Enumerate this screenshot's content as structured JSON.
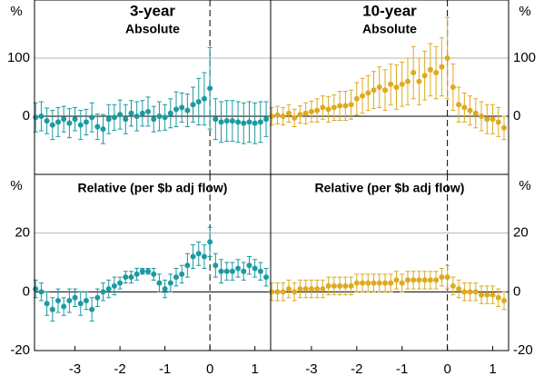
{
  "chart_data": [
    {
      "type": "scatter",
      "title": "3-year",
      "subtitle": "Absolute",
      "unit": "%",
      "x": [
        -3.875,
        -3.75,
        -3.625,
        -3.5,
        -3.375,
        -3.25,
        -3.125,
        -3,
        -2.875,
        -2.75,
        -2.625,
        -2.5,
        -2.375,
        -2.25,
        -2.125,
        -2,
        -1.875,
        -1.75,
        -1.625,
        -1.5,
        -1.375,
        -1.25,
        -1.125,
        -1,
        -0.875,
        -0.75,
        -0.625,
        -0.5,
        -0.375,
        -0.25,
        -0.125,
        0,
        0.125,
        0.25,
        0.375,
        0.5,
        0.625,
        0.75,
        0.875,
        1,
        1.125,
        1.25
      ],
      "series": [
        {
          "color": "#1b9aa0",
          "values": [
            -2,
            0,
            -8,
            -15,
            -10,
            -5,
            -12,
            -5,
            -15,
            -10,
            -2,
            -18,
            -22,
            -5,
            -2,
            3,
            -5,
            5,
            0,
            5,
            8,
            -5,
            0,
            -2,
            5,
            12,
            15,
            10,
            20,
            25,
            30,
            48,
            -5,
            -10,
            -8,
            -8,
            -10,
            -12,
            -10,
            -12,
            -10,
            -5
          ],
          "errors": [
            25,
            25,
            22,
            25,
            25,
            22,
            25,
            20,
            25,
            22,
            25,
            22,
            25,
            25,
            22,
            25,
            25,
            22,
            25,
            22,
            25,
            22,
            25,
            22,
            25,
            30,
            25,
            28,
            30,
            40,
            45,
            70,
            35,
            35,
            35,
            35,
            35,
            35,
            35,
            35,
            35,
            30
          ]
        }
      ],
      "xlim": [
        -3.9,
        1.35
      ],
      "ylim": [
        -100,
        200
      ],
      "yticks": [
        0,
        100
      ],
      "vline": 0,
      "axis_side": "left"
    },
    {
      "type": "scatter",
      "title": "10-year",
      "subtitle": "Absolute",
      "unit": "%",
      "x": [
        -3.875,
        -3.75,
        -3.625,
        -3.5,
        -3.375,
        -3.25,
        -3.125,
        -3,
        -2.875,
        -2.75,
        -2.625,
        -2.5,
        -2.375,
        -2.25,
        -2.125,
        -2,
        -1.875,
        -1.75,
        -1.625,
        -1.5,
        -1.375,
        -1.25,
        -1.125,
        -1,
        -0.875,
        -0.75,
        -0.625,
        -0.5,
        -0.375,
        -0.25,
        -0.125,
        0,
        0.125,
        0.25,
        0.375,
        0.5,
        0.625,
        0.75,
        0.875,
        1,
        1.125,
        1.25
      ],
      "series": [
        {
          "color": "#deaa1e",
          "values": [
            0,
            2,
            0,
            5,
            -3,
            3,
            5,
            8,
            10,
            15,
            12,
            15,
            18,
            18,
            20,
            30,
            35,
            40,
            45,
            50,
            45,
            55,
            50,
            55,
            60,
            75,
            60,
            70,
            80,
            75,
            85,
            100,
            50,
            20,
            15,
            10,
            5,
            0,
            -5,
            -5,
            -10,
            -20
          ],
          "errors": [
            15,
            15,
            15,
            15,
            15,
            15,
            18,
            18,
            20,
            20,
            22,
            22,
            25,
            25,
            25,
            28,
            30,
            30,
            32,
            35,
            35,
            35,
            38,
            38,
            40,
            45,
            40,
            42,
            45,
            45,
            50,
            70,
            40,
            30,
            25,
            25,
            25,
            25,
            25,
            25,
            25,
            20
          ]
        }
      ],
      "xlim": [
        -3.9,
        1.35
      ],
      "ylim": [
        -100,
        200
      ],
      "yticks": [
        0,
        100
      ],
      "vline": 0,
      "axis_side": "right"
    },
    {
      "type": "scatter",
      "subtitle": "Relative (per $b adj flow)",
      "unit": "%",
      "x": [
        -3.875,
        -3.75,
        -3.625,
        -3.5,
        -3.375,
        -3.25,
        -3.125,
        -3,
        -2.875,
        -2.75,
        -2.625,
        -2.5,
        -2.375,
        -2.25,
        -2.125,
        -2,
        -1.875,
        -1.75,
        -1.625,
        -1.5,
        -1.375,
        -1.25,
        -1.125,
        -1,
        -0.875,
        -0.75,
        -0.625,
        -0.5,
        -0.375,
        -0.25,
        -0.125,
        0,
        0.125,
        0.25,
        0.375,
        0.5,
        0.625,
        0.75,
        0.875,
        1,
        1.125,
        1.25
      ],
      "series": [
        {
          "color": "#1b9aa0",
          "values": [
            1,
            0,
            -4,
            -6,
            -3,
            -5,
            -3,
            -2,
            -4,
            -3,
            -6,
            -2,
            0,
            1,
            2,
            3,
            5,
            5,
            6,
            7,
            7,
            6,
            3,
            1,
            3,
            5,
            6,
            9,
            12,
            13,
            12,
            17,
            9,
            7,
            7,
            7,
            8,
            7,
            9,
            8,
            7,
            5
          ],
          "errors": [
            3,
            3,
            4,
            4,
            4,
            3,
            4,
            3,
            4,
            3,
            4,
            3,
            3,
            3,
            3,
            2,
            2,
            2,
            2,
            1,
            1,
            2,
            3,
            3,
            3,
            3,
            3,
            4,
            4,
            4,
            4,
            5,
            4,
            4,
            3,
            3,
            3,
            3,
            3,
            3,
            3,
            3
          ]
        }
      ],
      "xlim": [
        -3.9,
        1.35
      ],
      "xticks": [
        -3,
        -2,
        -1,
        0,
        1
      ],
      "ylim": [
        -20,
        40
      ],
      "yticks": [
        -20,
        0,
        20
      ],
      "vline": 0,
      "axis_side": "left"
    },
    {
      "type": "scatter",
      "subtitle": "Relative (per $b adj flow)",
      "unit": "%",
      "x": [
        -3.875,
        -3.75,
        -3.625,
        -3.5,
        -3.375,
        -3.25,
        -3.125,
        -3,
        -2.875,
        -2.75,
        -2.625,
        -2.5,
        -2.375,
        -2.25,
        -2.125,
        -2,
        -1.875,
        -1.75,
        -1.625,
        -1.5,
        -1.375,
        -1.25,
        -1.125,
        -1,
        -0.875,
        -0.75,
        -0.625,
        -0.5,
        -0.375,
        -0.25,
        -0.125,
        0,
        0.125,
        0.25,
        0.375,
        0.5,
        0.625,
        0.75,
        0.875,
        1,
        1.125,
        1.25
      ],
      "series": [
        {
          "color": "#deaa1e",
          "values": [
            0,
            0,
            0,
            1,
            0,
            1,
            1,
            1,
            1,
            1,
            2,
            2,
            2,
            2,
            2,
            3,
            3,
            3,
            3,
            3,
            3,
            3,
            4,
            3,
            4,
            4,
            4,
            4,
            4,
            4,
            5,
            5,
            2,
            1,
            0,
            0,
            0,
            -1,
            -1,
            -1,
            -2,
            -3
          ],
          "errors": [
            3,
            3,
            3,
            3,
            3,
            3,
            3,
            3,
            3,
            3,
            3,
            3,
            3,
            3,
            3,
            3,
            3,
            3,
            3,
            3,
            3,
            3,
            3,
            3,
            3,
            3,
            3,
            3,
            3,
            3,
            3,
            4,
            3,
            3,
            3,
            3,
            3,
            3,
            3,
            3,
            3,
            3
          ]
        }
      ],
      "xlim": [
        -3.9,
        1.35
      ],
      "xticks": [
        -3,
        -2,
        -1,
        0,
        1
      ],
      "ylim": [
        -20,
        40
      ],
      "yticks": [
        -20,
        0,
        20
      ],
      "vline": 0,
      "axis_side": "right"
    }
  ]
}
